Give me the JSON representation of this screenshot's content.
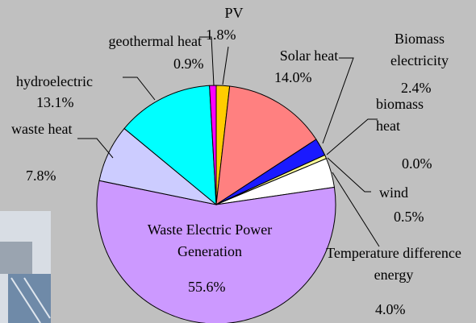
{
  "chart_data": {
    "type": "pie",
    "categories": [
      "PV",
      "Solar heat",
      "Biomass electricity",
      "biomass heat",
      "wind",
      "Temperature difference energy",
      "Waste Electric Power Generation",
      "waste heat",
      "hydroelectric",
      "geothermal heat"
    ],
    "values": [
      1.8,
      14.0,
      2.4,
      0.0,
      0.5,
      4.0,
      55.6,
      7.8,
      13.1,
      0.9
    ],
    "value_labels": [
      "1.8%",
      "14.0%",
      "2.4%",
      "0.0%",
      "0.5%",
      "4.0%",
      "55.6%",
      "7.8%",
      "13.1%",
      "0.9%"
    ],
    "colors": [
      "#ffcc00",
      "#ff8080",
      "#1a1aff",
      "#99ff99",
      "#ffff99",
      "#ffffff",
      "#cc99ff",
      "#ccccff",
      "#00ffff",
      "#ff00ff"
    ]
  }
}
